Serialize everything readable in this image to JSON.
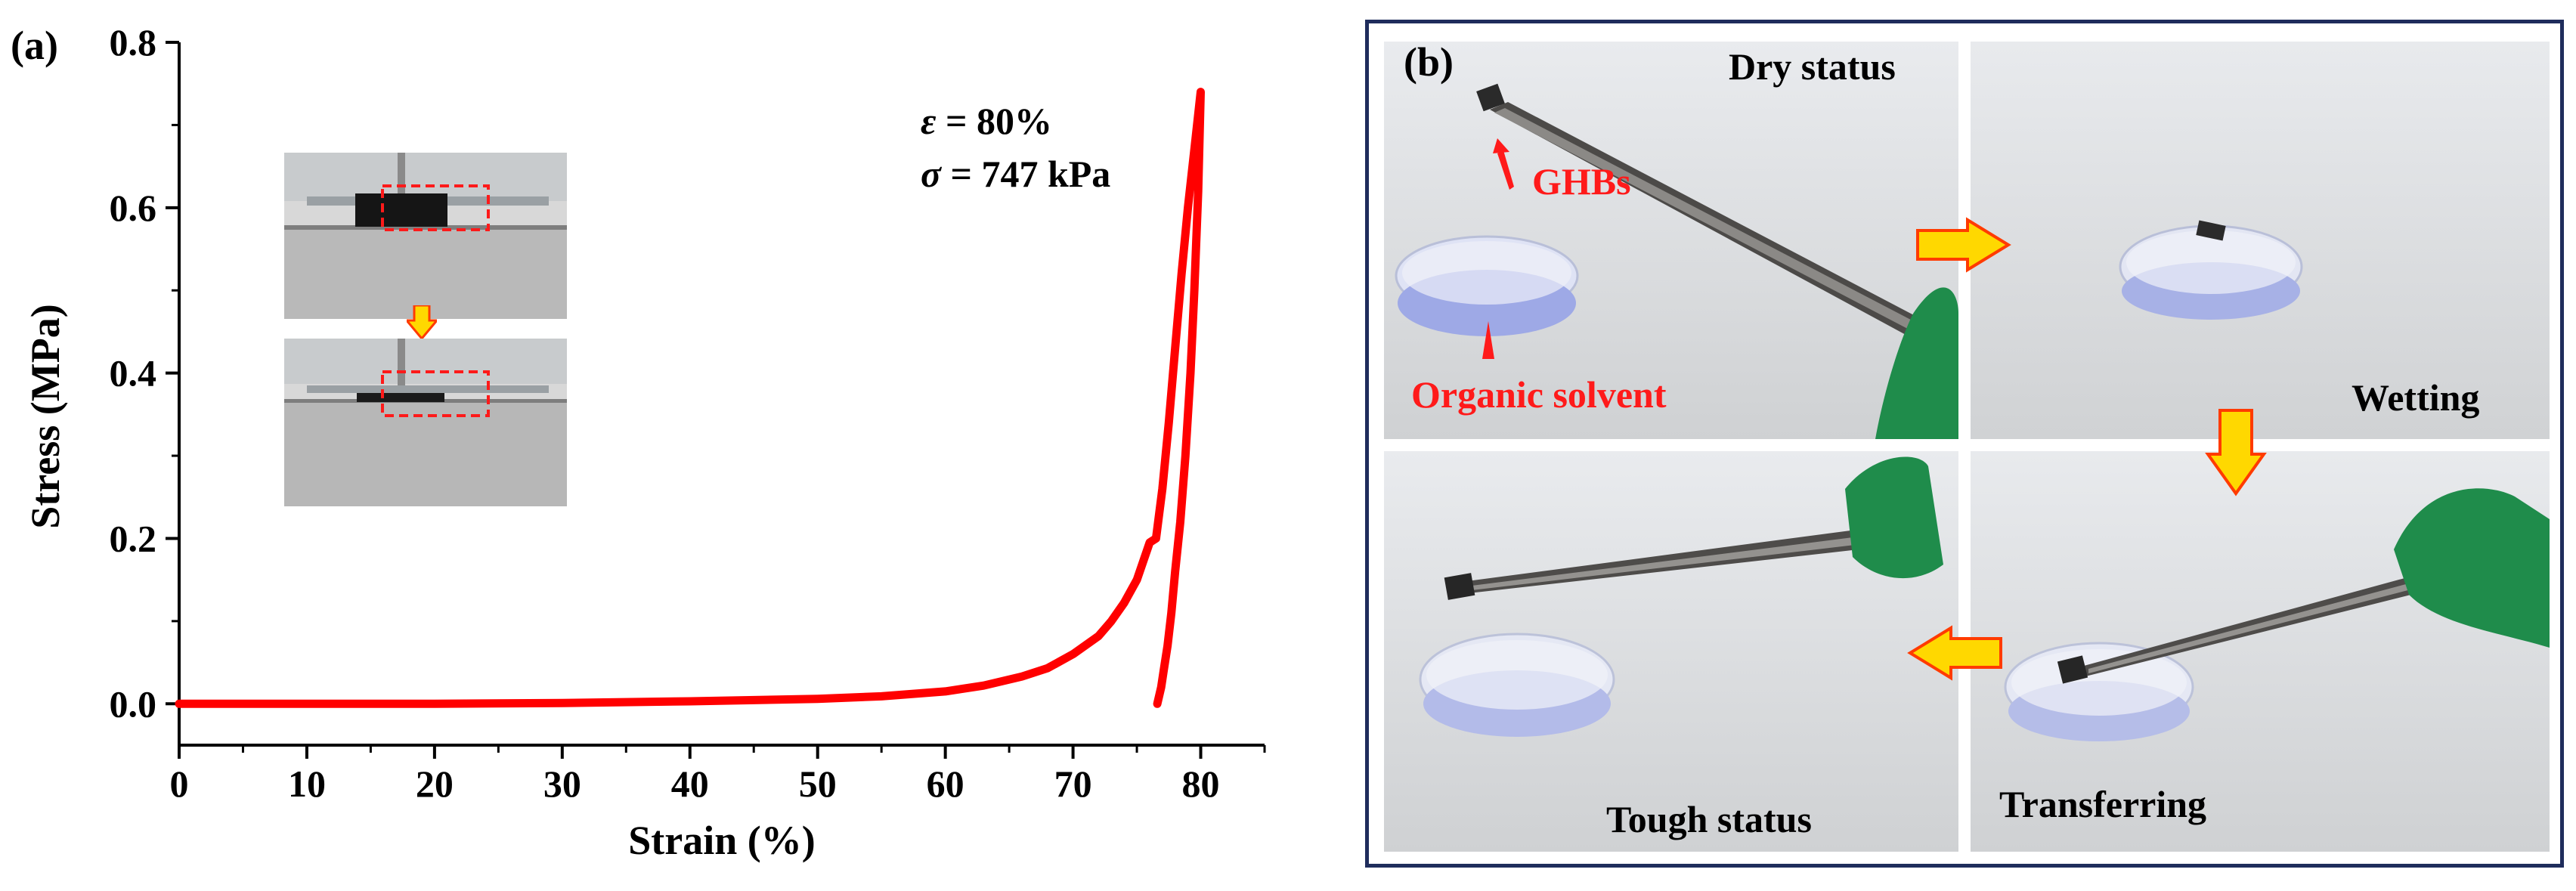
{
  "panel_a": {
    "letter": "(a)",
    "annotation": {
      "eps_symbol": "ε",
      "eps_text": " = 80%",
      "sigma_symbol": "σ",
      "sigma_text": " = 747 kPa"
    }
  },
  "panel_b": {
    "letter": "(b)",
    "labels": {
      "dry": "Dry status",
      "ghbs": "GHBs",
      "organic": "Organic solvent",
      "wetting": "Wetting",
      "tough": "Tough status",
      "transferring": "Transferring"
    }
  },
  "chart_data": {
    "type": "line",
    "xlabel": "Strain (%)",
    "ylabel": "Stress (MPa)",
    "xlim": [
      0,
      85
    ],
    "ylim": [
      -0.05,
      0.8
    ],
    "xticks": [
      0,
      10,
      20,
      30,
      40,
      50,
      60,
      70,
      80
    ],
    "yticks": [
      0.0,
      0.2,
      0.4,
      0.6,
      0.8
    ],
    "xtick_labels": [
      "0",
      "10",
      "20",
      "30",
      "40",
      "50",
      "60",
      "70",
      "80"
    ],
    "ytick_labels": [
      "0.0",
      "0.2",
      "0.4",
      "0.6",
      "0.8"
    ],
    "grid": false,
    "series_color": "#ff0000",
    "series": [
      {
        "x": [
          0,
          10,
          20,
          30,
          40,
          50,
          55,
          60,
          63,
          66,
          68,
          70,
          72,
          73,
          74,
          75,
          76,
          76.5,
          77,
          77.5,
          78,
          78.5,
          79,
          79.5,
          80,
          79.8,
          79.5,
          79.2,
          78.8,
          78.4,
          78,
          77.7,
          77.4,
          77.1,
          76.9,
          76.6
        ],
        "y": [
          0,
          0,
          0,
          0.001,
          0.003,
          0.006,
          0.009,
          0.015,
          0.022,
          0.033,
          0.043,
          0.06,
          0.082,
          0.1,
          0.122,
          0.15,
          0.195,
          0.2,
          0.26,
          0.34,
          0.43,
          0.52,
          0.6,
          0.67,
          0.74,
          0.62,
          0.5,
          0.4,
          0.3,
          0.22,
          0.16,
          0.11,
          0.07,
          0.04,
          0.02,
          0.0
        ]
      }
    ]
  }
}
